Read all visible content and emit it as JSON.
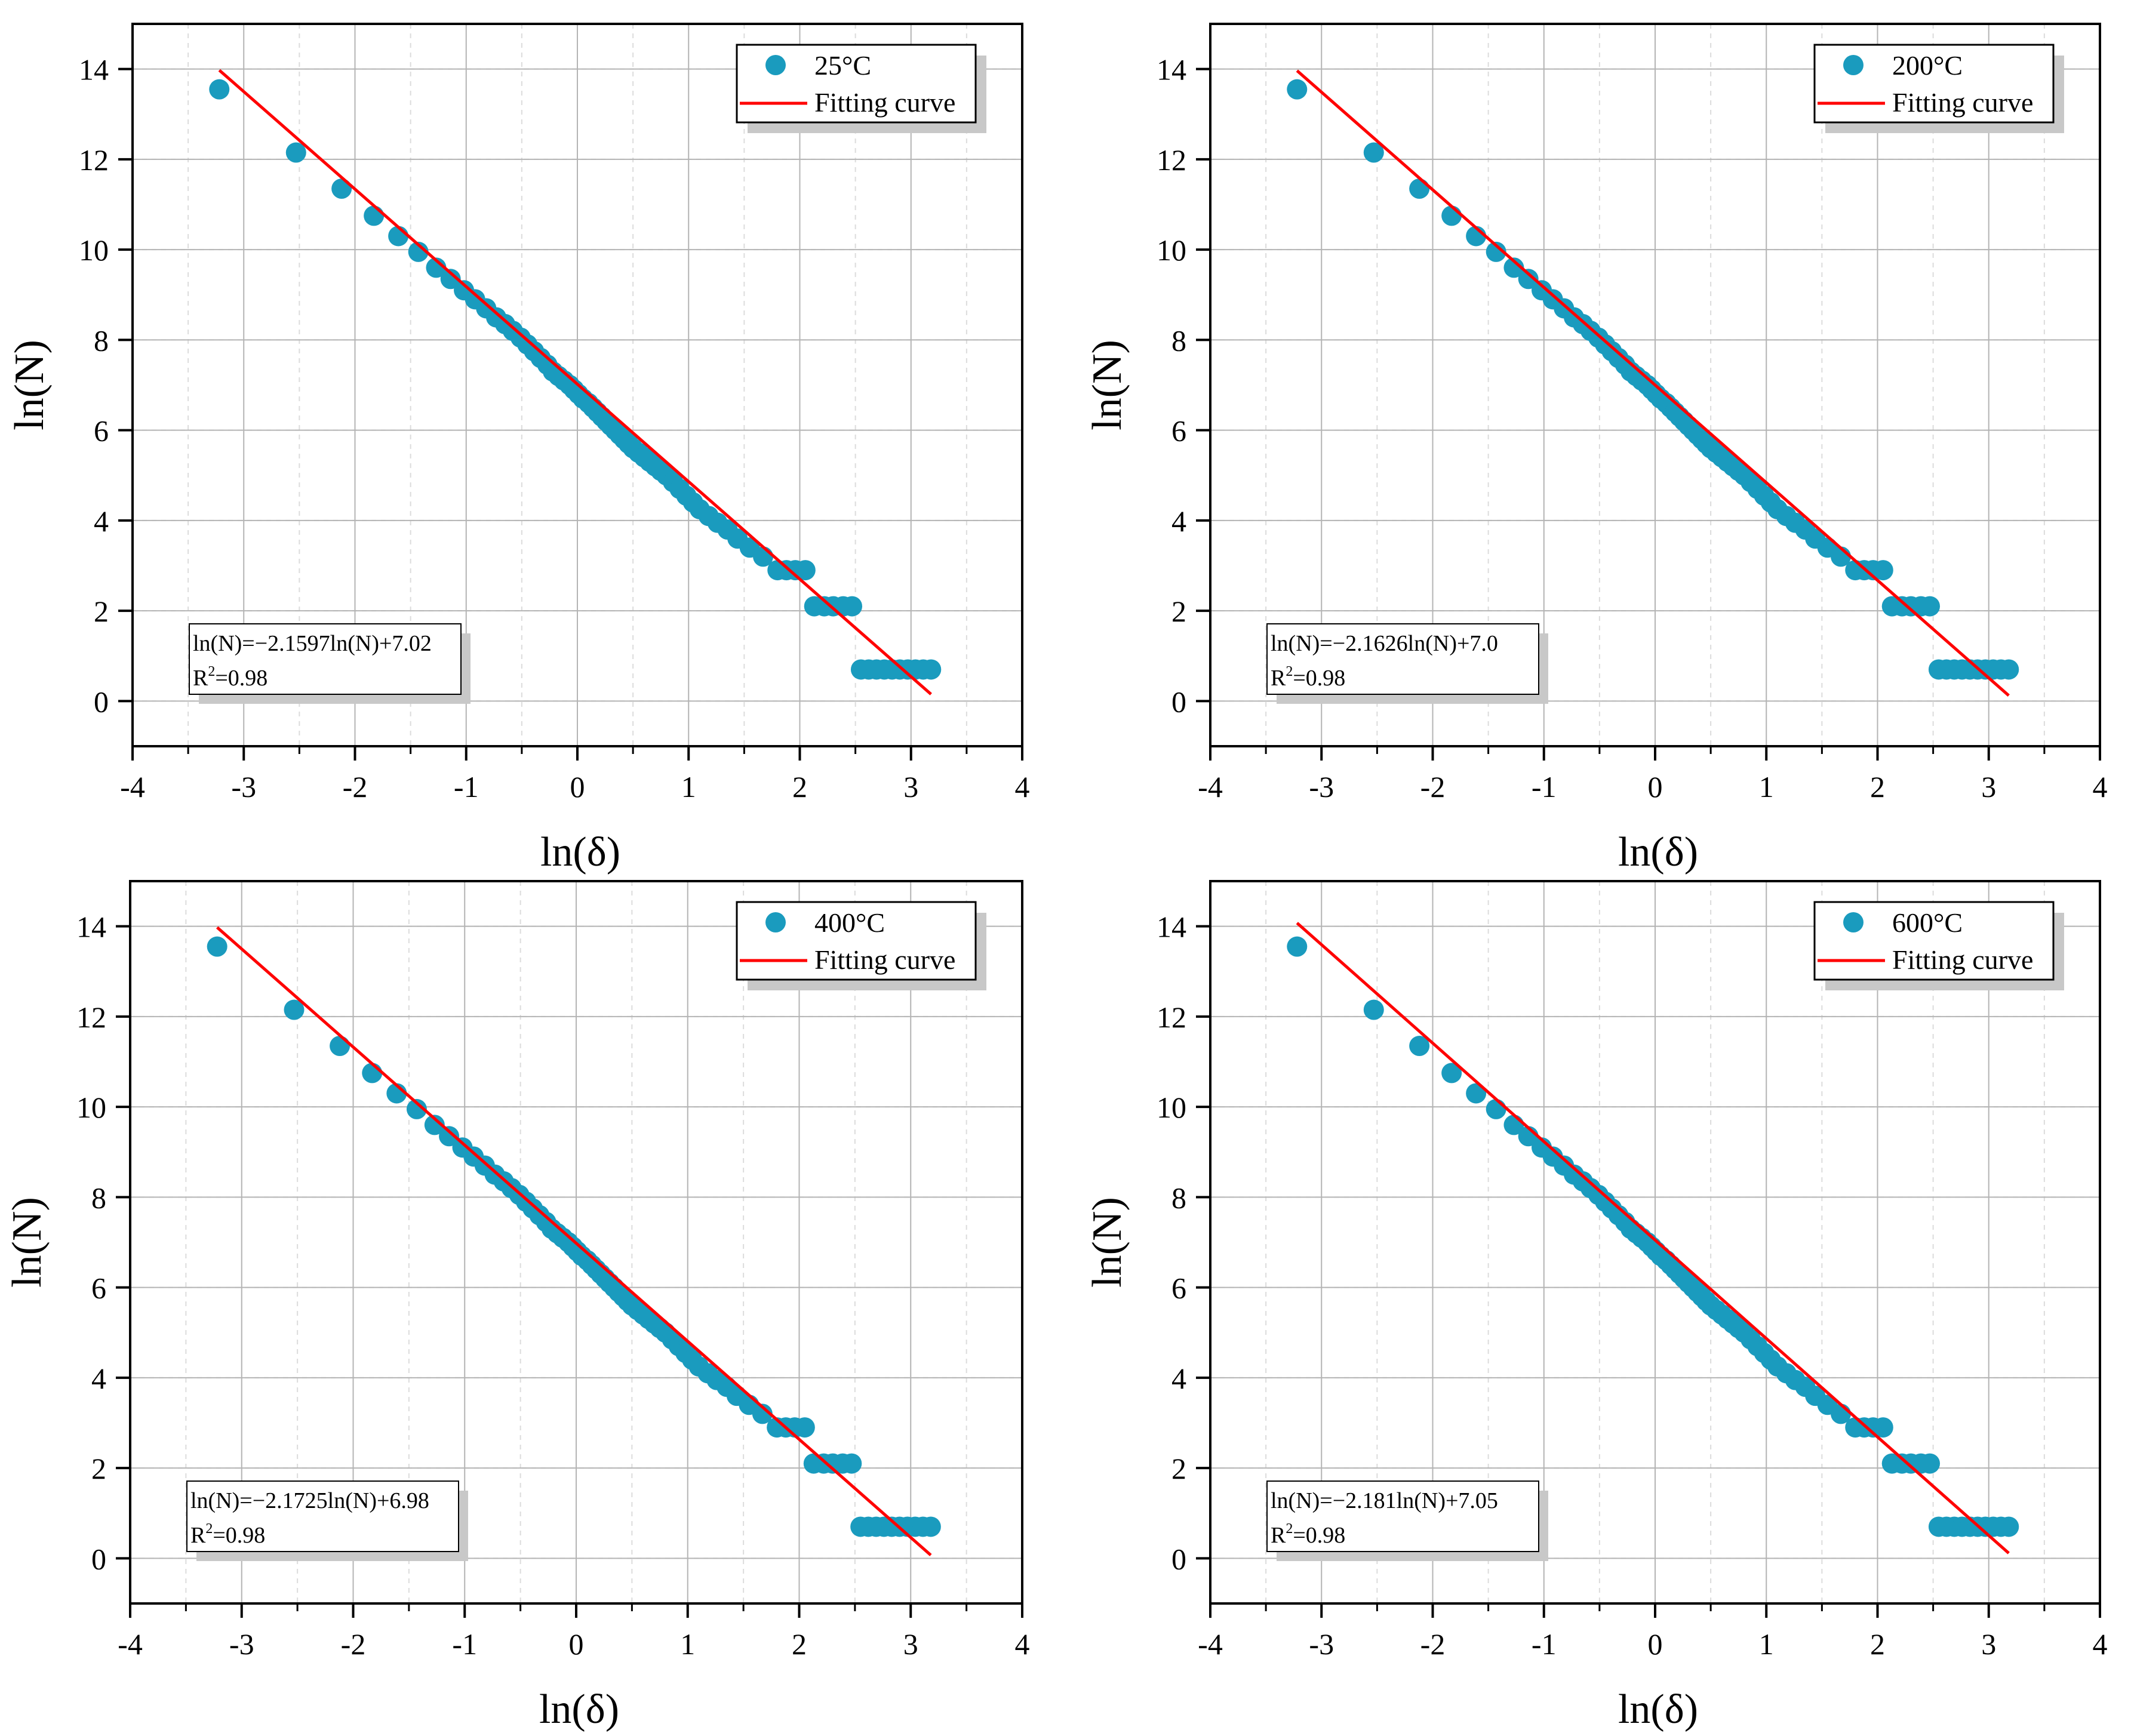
{
  "chart_data": [
    {
      "type": "scatter",
      "title": "",
      "xlabel": "ln(δ)",
      "ylabel": "ln(N)",
      "xlim": [
        -4,
        4
      ],
      "ylim": [
        -1,
        15
      ],
      "xticks": [
        "-4",
        "-3",
        "-2",
        "-1",
        "0",
        "1",
        "2",
        "3",
        "4"
      ],
      "yticks": [
        "0",
        "2",
        "4",
        "6",
        "8",
        "10",
        "12",
        "14"
      ],
      "grid": true,
      "legend_position": "top-right",
      "equation_position": "bottom-left",
      "colors": {
        "points": "#1A9BBE",
        "fit": "#FF0000"
      },
      "series": [
        {
          "name": "25°C",
          "kind": "points"
        },
        {
          "name": "Fitting curve",
          "kind": "line",
          "slope": -2.1597,
          "intercept": 7.02,
          "x_range": [
            -3.22,
            3.18
          ]
        }
      ],
      "annotation": {
        "equation": "ln(N)=−2.1597ln(N)+7.02",
        "r2_base": "R",
        "r2_exp": "2",
        "r2_value": "=0.98"
      }
    },
    {
      "type": "scatter",
      "title": "",
      "xlabel": "ln(δ)",
      "ylabel": "ln(N)",
      "xlim": [
        -4,
        4
      ],
      "ylim": [
        -1,
        15
      ],
      "xticks": [
        "-4",
        "-3",
        "-2",
        "-1",
        "0",
        "1",
        "2",
        "3",
        "4"
      ],
      "yticks": [
        "0",
        "2",
        "4",
        "6",
        "8",
        "10",
        "12",
        "14"
      ],
      "grid": true,
      "legend_position": "top-right",
      "equation_position": "bottom-left",
      "colors": {
        "points": "#1A9BBE",
        "fit": "#FF0000"
      },
      "series": [
        {
          "name": "200°C",
          "kind": "points"
        },
        {
          "name": "Fitting curve",
          "kind": "line",
          "slope": -2.1626,
          "intercept": 7.0,
          "x_range": [
            -3.22,
            3.18
          ]
        }
      ],
      "annotation": {
        "equation": "ln(N)=−2.1626ln(N)+7.0",
        "r2_base": "R",
        "r2_exp": "2",
        "r2_value": "=0.98"
      }
    },
    {
      "type": "scatter",
      "title": "",
      "xlabel": "ln(δ)",
      "ylabel": "ln(N)",
      "xlim": [
        -4,
        4
      ],
      "ylim": [
        -1,
        15
      ],
      "xticks": [
        "-4",
        "-3",
        "-2",
        "-1",
        "0",
        "1",
        "2",
        "3",
        "4"
      ],
      "yticks": [
        "0",
        "2",
        "4",
        "6",
        "8",
        "10",
        "12",
        "14"
      ],
      "grid": true,
      "legend_position": "top-right",
      "equation_position": "bottom-left",
      "colors": {
        "points": "#1A9BBE",
        "fit": "#FF0000"
      },
      "series": [
        {
          "name": "400°C",
          "kind": "points"
        },
        {
          "name": "Fitting curve",
          "kind": "line",
          "slope": -2.1725,
          "intercept": 6.98,
          "x_range": [
            -3.22,
            3.18
          ]
        }
      ],
      "annotation": {
        "equation": "ln(N)=−2.1725ln(N)+6.98",
        "r2_base": "R",
        "r2_exp": "2",
        "r2_value": "=0.98"
      }
    },
    {
      "type": "scatter",
      "title": "",
      "xlabel": "ln(δ)",
      "ylabel": "ln(N)",
      "xlim": [
        -4,
        4
      ],
      "ylim": [
        -1,
        15
      ],
      "xticks": [
        "-4",
        "-3",
        "-2",
        "-1",
        "0",
        "1",
        "2",
        "3",
        "4"
      ],
      "yticks": [
        "0",
        "2",
        "4",
        "6",
        "8",
        "10",
        "12",
        "14"
      ],
      "grid": true,
      "legend_position": "top-right",
      "equation_position": "bottom-left",
      "colors": {
        "points": "#1A9BBE",
        "fit": "#FF0000"
      },
      "series": [
        {
          "name": "600°C",
          "kind": "points"
        },
        {
          "name": "Fitting curve",
          "kind": "line",
          "slope": -2.181,
          "intercept": 7.05,
          "x_range": [
            -3.22,
            3.18
          ]
        }
      ],
      "annotation": {
        "equation": "ln(N)=−2.181ln(N)+7.05",
        "r2_base": "R",
        "r2_exp": "2",
        "r2_value": "=0.98"
      }
    }
  ],
  "shared_points": {
    "x": [
      -3.22,
      -2.53,
      -2.12,
      -1.83,
      -1.61,
      -1.43,
      -1.27,
      -1.14,
      -1.02,
      -0.92,
      -0.82,
      -0.73,
      -0.65,
      -0.58,
      -0.51,
      -0.45,
      -0.39,
      -0.33,
      -0.27,
      -0.22,
      -0.17,
      -0.12,
      -0.07,
      -0.03,
      0.01,
      0.05,
      0.1,
      0.14,
      0.18,
      0.22,
      0.26,
      0.3,
      0.34,
      0.38,
      0.42,
      0.46,
      0.5,
      0.55,
      0.6,
      0.65,
      0.7,
      0.75,
      0.8,
      0.86,
      0.92,
      0.98,
      1.04,
      1.1,
      1.18,
      1.26,
      1.35,
      1.44,
      1.55,
      1.67,
      1.8,
      1.88,
      1.96,
      2.05,
      2.13,
      2.22,
      2.3,
      2.39,
      2.47,
      2.55,
      2.62,
      2.69,
      2.76,
      2.83,
      2.9,
      2.97,
      3.04,
      3.11,
      3.18
    ],
    "y": [
      13.55,
      12.15,
      11.35,
      10.75,
      10.3,
      9.95,
      9.6,
      9.35,
      9.1,
      8.9,
      8.7,
      8.5,
      8.35,
      8.2,
      8.05,
      7.9,
      7.75,
      7.6,
      7.45,
      7.3,
      7.2,
      7.1,
      7.0,
      6.9,
      6.8,
      6.7,
      6.6,
      6.5,
      6.4,
      6.3,
      6.2,
      6.1,
      6.0,
      5.9,
      5.8,
      5.7,
      5.6,
      5.5,
      5.4,
      5.3,
      5.2,
      5.1,
      5.0,
      4.85,
      4.7,
      4.55,
      4.4,
      4.25,
      4.1,
      3.95,
      3.8,
      3.6,
      3.4,
      3.2,
      2.9,
      2.9,
      2.9,
      2.9,
      2.1,
      2.1,
      2.1,
      2.1,
      2.1,
      0.7,
      0.7,
      0.7,
      0.7,
      0.7,
      0.7,
      0.7,
      0.7,
      0.7,
      0.7
    ]
  }
}
